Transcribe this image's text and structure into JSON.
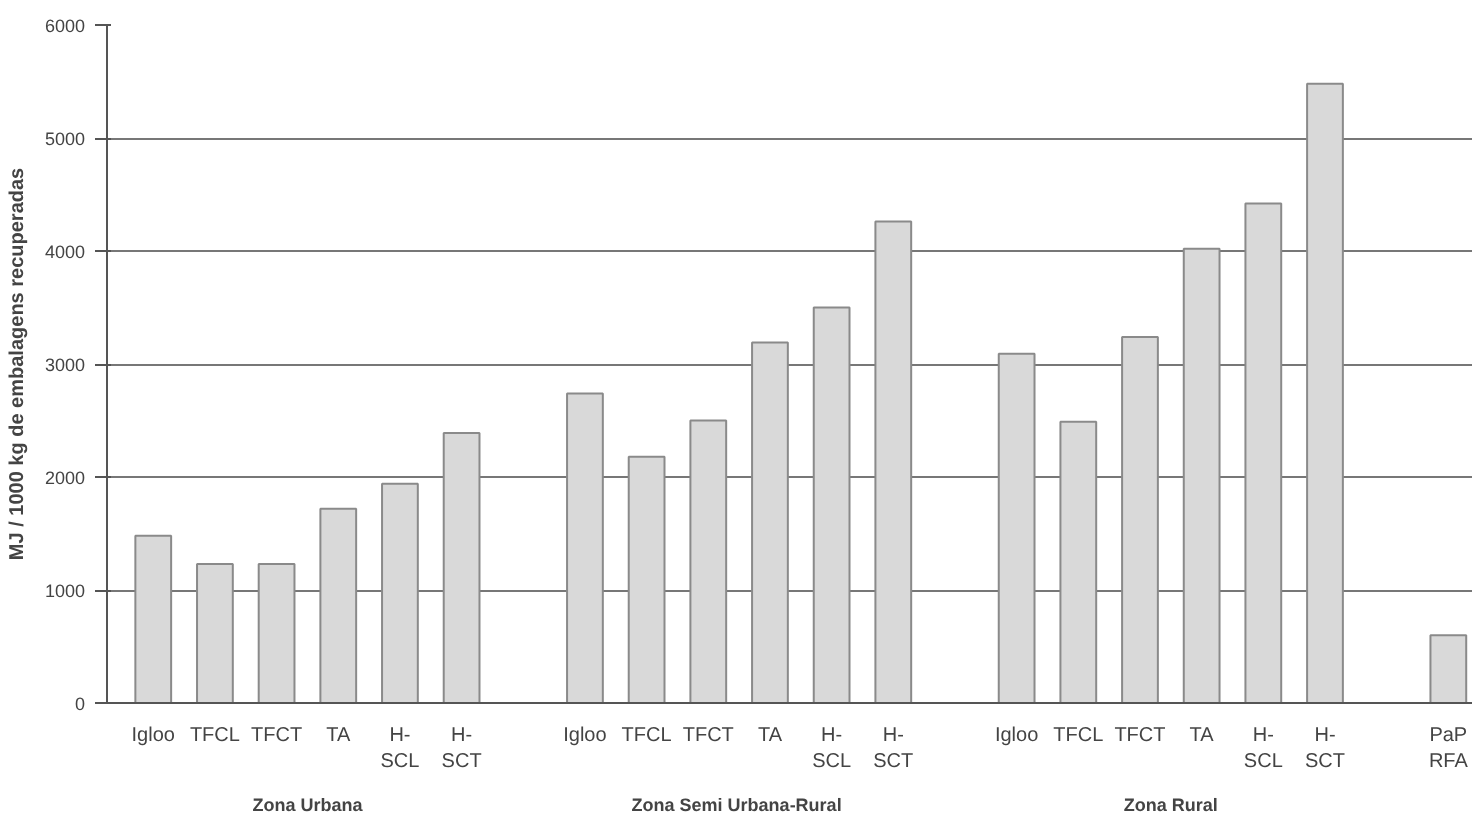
{
  "chart_data": {
    "type": "bar",
    "ylabel": "MJ / 1000 kg de embalagens recuperadas",
    "categories": [
      "Igloo",
      "TFCL",
      "TFCT",
      "TA",
      "H-\nSCL",
      "H-\nSCT",
      null,
      "Igloo",
      "TFCL",
      "TFCT",
      "TA",
      "H-\nSCL",
      "H-\nSCT",
      null,
      "Igloo",
      "TFCL",
      "TFCT",
      "TA",
      "H-\nSCL",
      "H-\nSCT",
      null,
      "PaP\nRFA"
    ],
    "values": [
      1480,
      1230,
      1230,
      1720,
      1940,
      2390,
      null,
      2740,
      2180,
      2500,
      3190,
      3500,
      4260,
      null,
      3090,
      2490,
      3240,
      4020,
      4420,
      5480,
      null,
      600
    ],
    "color": "#d9d9d9",
    "ylim": [
      0,
      6000
    ],
    "yticks": [
      0,
      1000,
      2000,
      3000,
      4000,
      5000,
      6000
    ],
    "grid": "y",
    "annotations": [
      "Zona Urbana",
      "Zona  Semi Urbana-Rural",
      "Zona Rural"
    ]
  }
}
